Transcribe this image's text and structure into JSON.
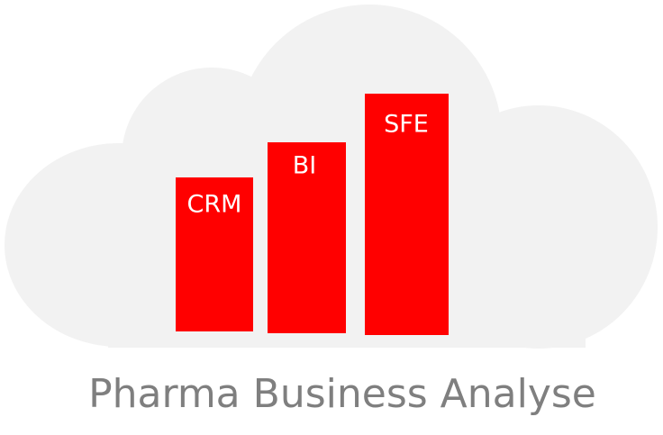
{
  "bars": [
    {
      "label": "CRM"
    },
    {
      "label": "BI"
    },
    {
      "label": "SFE"
    }
  ],
  "title": "Pharma Business Analyse"
}
